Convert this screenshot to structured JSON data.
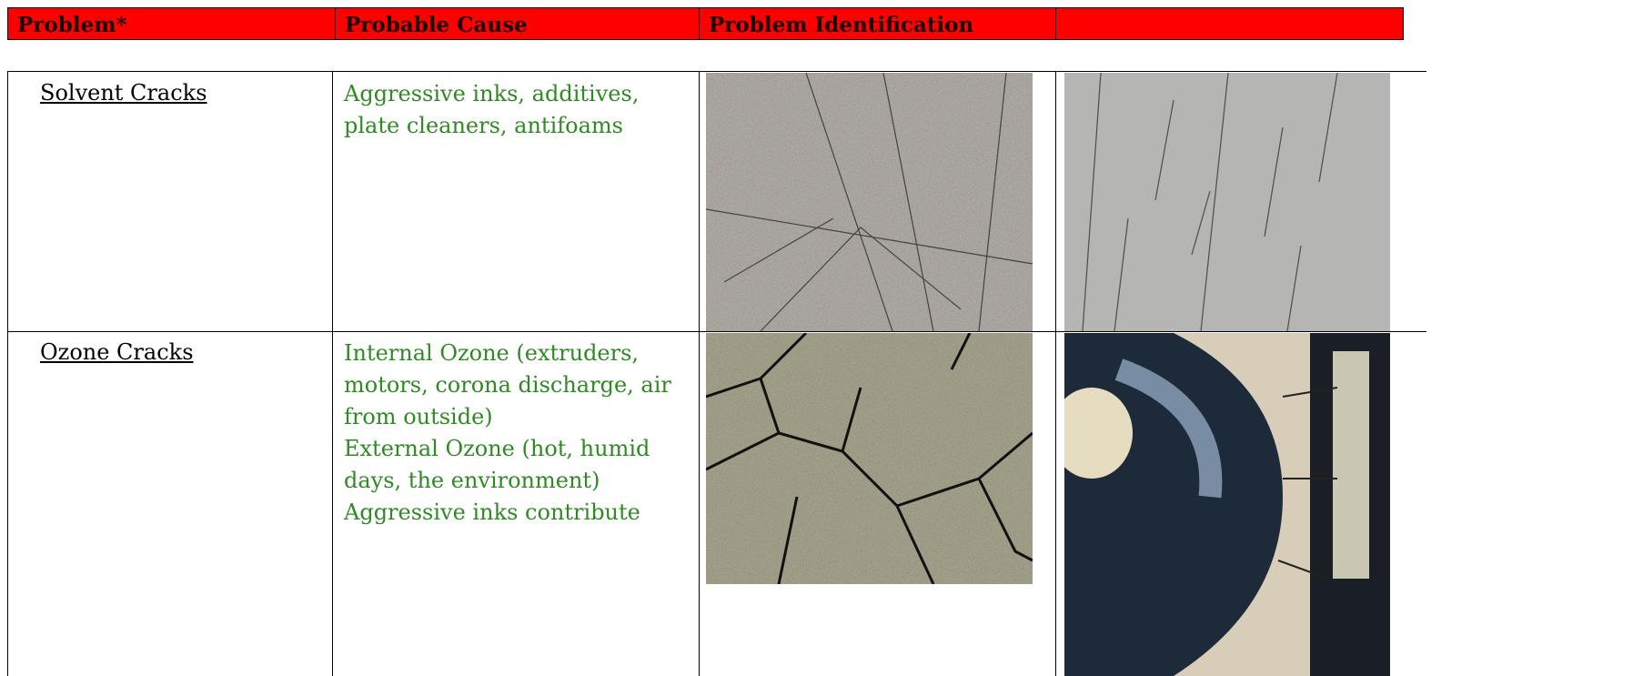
{
  "header": {
    "columns": [
      "Problem*",
      "Probable Cause",
      "Problem Identification"
    ]
  },
  "table": {
    "rows": [
      {
        "problem": "Solvent Cracks",
        "cause": [
          "Aggressive inks, additives,",
          "plate cleaners, antifoams"
        ]
      },
      {
        "problem": "Ozone Cracks",
        "cause": [
          "Internal Ozone (extruders,",
          "motors, corona discharge, air",
          "from outside)",
          "External Ozone (hot, humid",
          "days, the environment)",
          "Aggressive inks contribute"
        ]
      }
    ]
  }
}
